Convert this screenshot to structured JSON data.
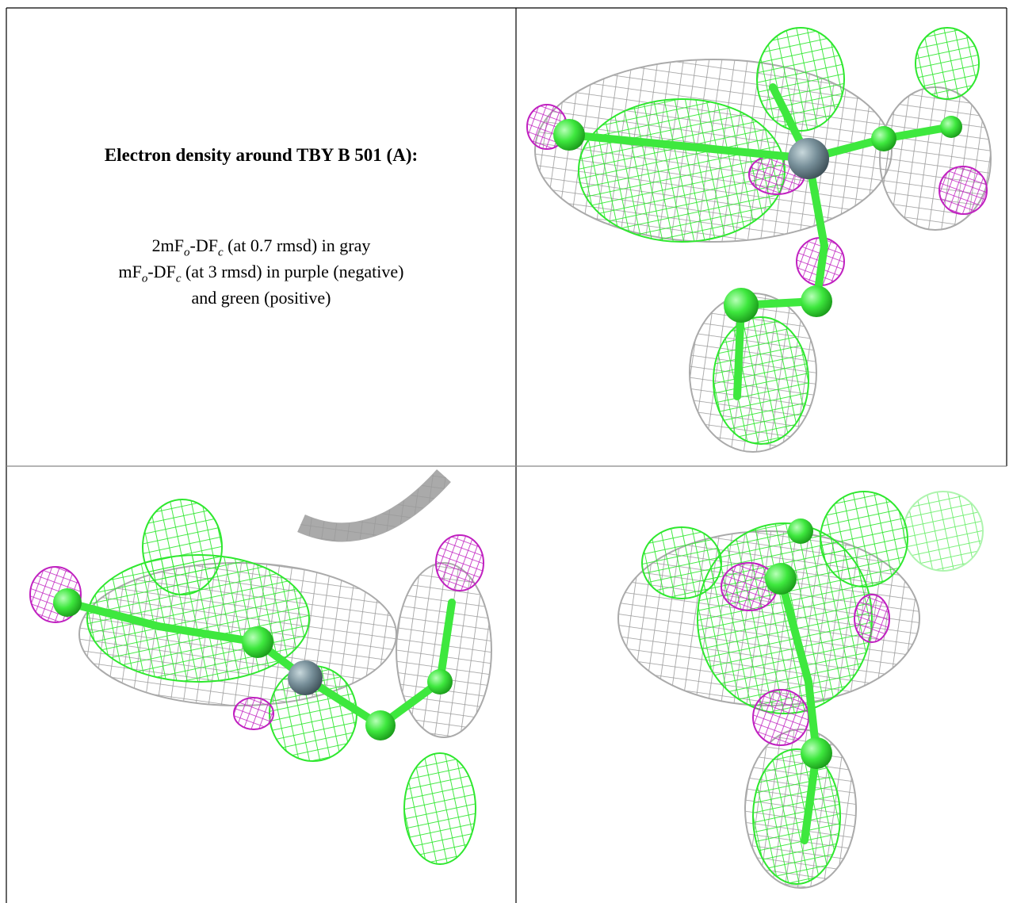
{
  "caption": {
    "title": "Electron density around TBY B 501 (A):",
    "lines": [
      [
        "2mF",
        "o",
        "-DF",
        "c",
        " (at 0.7 rmsd) in gray"
      ],
      [
        "mF",
        "o",
        "-DF",
        "c",
        " (at 3 rmsd) in purple (negative)"
      ],
      [
        "and green (positive)"
      ]
    ]
  }
}
